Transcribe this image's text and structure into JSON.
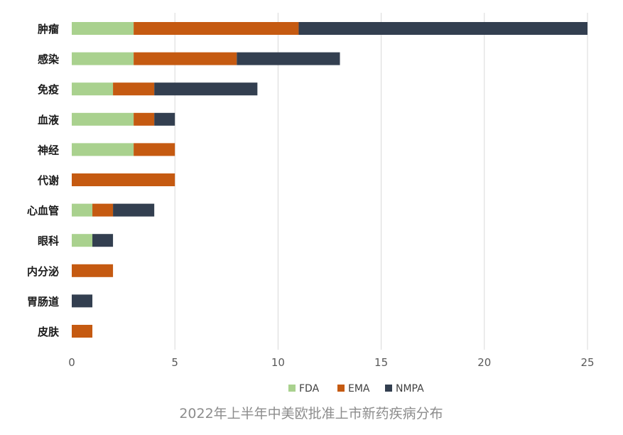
{
  "chart_data": {
    "type": "bar",
    "orientation": "horizontal",
    "stacked": true,
    "categories": [
      "肿瘤",
      "感染",
      "免疫",
      "血液",
      "神经",
      "代谢",
      "心血管",
      "眼科",
      "内分泌",
      "胃肠道",
      "皮肤"
    ],
    "series": [
      {
        "name": "FDA",
        "color": "#a9d18e",
        "values": [
          3,
          3,
          2,
          3,
          3,
          0,
          1,
          1,
          0,
          0,
          0
        ]
      },
      {
        "name": "EMA",
        "color": "#c55a11",
        "values": [
          8,
          5,
          2,
          1,
          2,
          5,
          1,
          0,
          2,
          0,
          1
        ]
      },
      {
        "name": "NMPA",
        "color": "#333f50",
        "values": [
          14,
          5,
          5,
          1,
          0,
          0,
          2,
          1,
          0,
          1,
          0
        ]
      }
    ],
    "xlim": [
      0,
      25
    ],
    "xticks": [
      "0",
      "5",
      "10",
      "15",
      "20",
      "25"
    ],
    "grid": true,
    "legend_position": "bottom",
    "caption": "2022年上半年中美欧批准上市新药疾病分布"
  }
}
